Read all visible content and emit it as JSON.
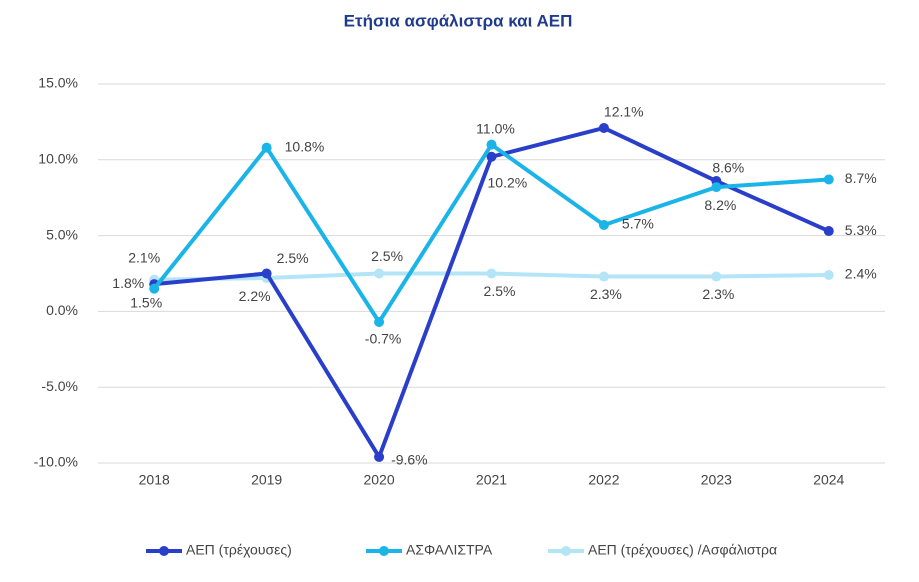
{
  "chart_data": {
    "type": "line",
    "title": "Ετήσια ασφάλιστρα και ΑΕΠ",
    "categories": [
      "2018",
      "2019",
      "2020",
      "2021",
      "2022",
      "2023",
      "2024"
    ],
    "ylim": [
      -10,
      15
    ],
    "yticks": [
      {
        "value": -10,
        "label": "-10.0%"
      },
      {
        "value": -5,
        "label": "-5.0%"
      },
      {
        "value": 0,
        "label": "0.0%"
      },
      {
        "value": 5,
        "label": "5.0%"
      },
      {
        "value": 10,
        "label": "10.0%"
      },
      {
        "value": 15,
        "label": "15.0%"
      }
    ],
    "grid": true,
    "legend": "bottom",
    "series": [
      {
        "name": "ΑΕΠ (τρέχουσες)",
        "color": "#2a3fc9",
        "values": [
          1.8,
          2.5,
          -9.6,
          10.2,
          12.1,
          8.6,
          5.3
        ],
        "value_labels": [
          "1.8%",
          "2.5%",
          "-9.6%",
          "10.2%",
          "12.1%",
          "8.6%",
          "5.3%"
        ]
      },
      {
        "name": "ΑΣΦΑΛΙΣΤΡΑ",
        "color": "#1ab4e8",
        "values": [
          1.5,
          10.8,
          -0.7,
          11.0,
          5.7,
          8.2,
          8.7
        ],
        "value_labels": [
          "1.5%",
          "10.8%",
          "-0.7%",
          "11.0%",
          "5.7%",
          "8.2%",
          "8.7%"
        ]
      },
      {
        "name": "ΑΕΠ (τρέχουσες) /Ασφάλιστρα",
        "color": "#b3e5f7",
        "values": [
          2.1,
          2.2,
          2.5,
          2.5,
          2.3,
          2.3,
          2.4
        ],
        "value_labels": [
          "2.1%",
          "2.2%",
          "2.5%",
          "2.5%",
          "2.3%",
          "2.3%",
          "2.4%"
        ]
      }
    ]
  }
}
